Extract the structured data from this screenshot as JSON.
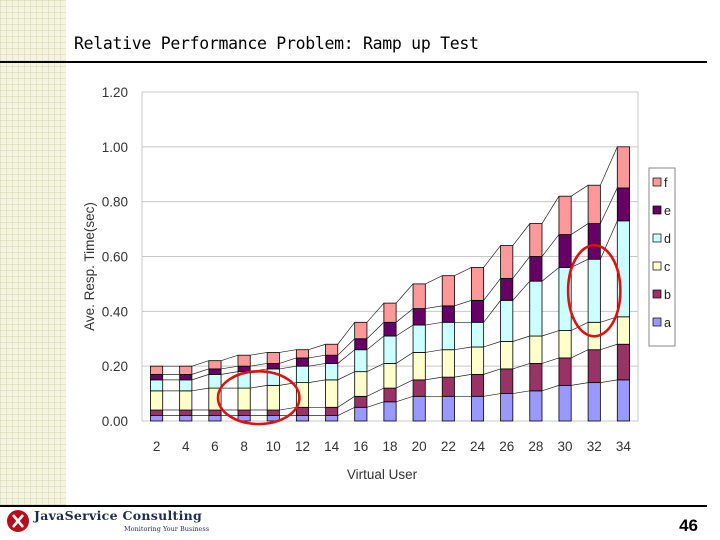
{
  "slide": {
    "title": "Relative Performance Problem:  Ramp up Test",
    "page_number": "46"
  },
  "logo": {
    "name": "JavaService Consulting",
    "tagline": "Monitoring Your Business"
  },
  "chart_data": {
    "type": "bar",
    "stacked": true,
    "categories": [
      "2",
      "4",
      "6",
      "8",
      "10",
      "12",
      "14",
      "16",
      "18",
      "20",
      "22",
      "24",
      "26",
      "28",
      "30",
      "32",
      "34"
    ],
    "ylabel": "Ave. Resp. Time(sec)",
    "xlabel": "Virtual User",
    "ylim": [
      0,
      1.2
    ],
    "yticks": [
      "0.00",
      "0.20",
      "0.40",
      "0.60",
      "0.80",
      "1.00",
      "1.20"
    ],
    "legend_position": "right",
    "series": [
      {
        "name": "a",
        "color": "#9999ff",
        "values": [
          0.02,
          0.02,
          0.02,
          0.02,
          0.02,
          0.02,
          0.02,
          0.05,
          0.07,
          0.09,
          0.09,
          0.09,
          0.1,
          0.11,
          0.13,
          0.14,
          0.15
        ]
      },
      {
        "name": "b",
        "color": "#993366",
        "values": [
          0.02,
          0.02,
          0.02,
          0.02,
          0.02,
          0.03,
          0.03,
          0.04,
          0.05,
          0.06,
          0.07,
          0.08,
          0.09,
          0.1,
          0.1,
          0.12,
          0.13
        ]
      },
      {
        "name": "c",
        "color": "#ffffcc",
        "values": [
          0.07,
          0.07,
          0.08,
          0.08,
          0.09,
          0.09,
          0.1,
          0.09,
          0.09,
          0.1,
          0.1,
          0.1,
          0.1,
          0.1,
          0.1,
          0.1,
          0.1
        ]
      },
      {
        "name": "d",
        "color": "#ccffff",
        "values": [
          0.04,
          0.04,
          0.05,
          0.06,
          0.06,
          0.06,
          0.06,
          0.08,
          0.1,
          0.1,
          0.1,
          0.09,
          0.15,
          0.2,
          0.23,
          0.23,
          0.35
        ]
      },
      {
        "name": "e",
        "color": "#660066",
        "values": [
          0.02,
          0.02,
          0.02,
          0.02,
          0.02,
          0.03,
          0.03,
          0.04,
          0.05,
          0.06,
          0.06,
          0.08,
          0.08,
          0.09,
          0.12,
          0.13,
          0.12
        ]
      },
      {
        "name": "f",
        "color": "#ff9999",
        "values": [
          0.03,
          0.03,
          0.03,
          0.04,
          0.04,
          0.03,
          0.04,
          0.06,
          0.07,
          0.09,
          0.11,
          0.12,
          0.12,
          0.12,
          0.14,
          0.14,
          0.15
        ]
      }
    ],
    "highlights": [
      {
        "series": "c",
        "categories": [
          "8",
          "10"
        ]
      },
      {
        "series": "d",
        "categories": [
          "32"
        ]
      }
    ],
    "highlight_color": "#dd1111"
  }
}
